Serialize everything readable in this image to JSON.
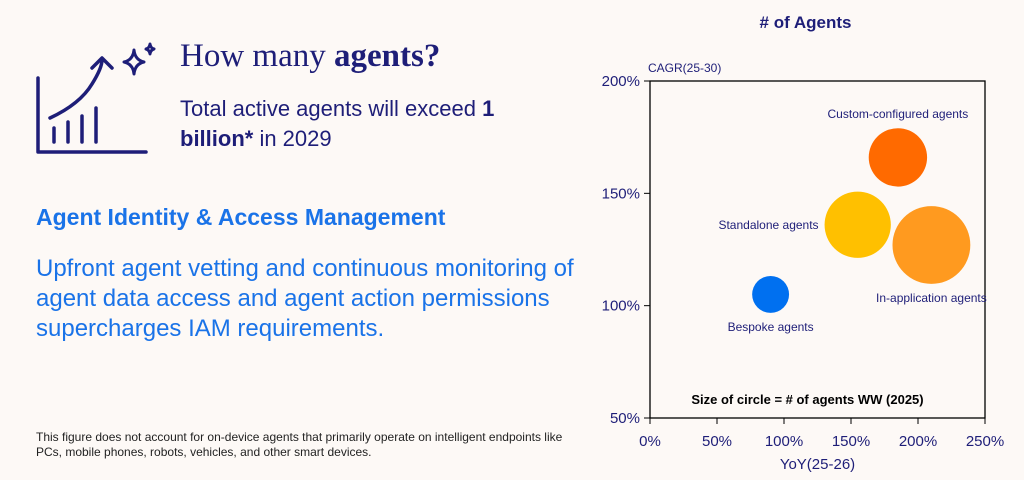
{
  "header": {
    "title_prefix": "How many ",
    "title_bold": "agents?",
    "sub_prefix": "Total active agents will exceed ",
    "sub_bold": "1 billion*",
    "sub_suffix": " in 2029"
  },
  "icons": {
    "growth": "growth-chart-icon",
    "sparkle": "sparkle-icon"
  },
  "iam": {
    "heading": "Agent Identity & Access Management",
    "body": "Upfront agent vetting and continuous monitoring of agent data access and agent action permissions supercharges IAM requirements."
  },
  "footnote": "This figure does not account for on-device agents that primarily operate on intelligent endpoints like PCs, mobile phones, robots, vehicles, and other smart devices.",
  "colors": {
    "navy": "#1e1e78",
    "blue": "#1a73e8"
  },
  "chart_data": {
    "type": "scatter",
    "title": "# of Agents",
    "xlabel": "YoY(25-26)",
    "ylabel": "CAGR(25-30)",
    "xlim": [
      0,
      250
    ],
    "ylim": [
      50,
      200
    ],
    "xticks": [
      0,
      50,
      100,
      150,
      200,
      250
    ],
    "xtick_labels": [
      "0%",
      "50%",
      "100%",
      "150%",
      "200%",
      "250%"
    ],
    "yticks": [
      50,
      100,
      150,
      200
    ],
    "ytick_labels": [
      "50%",
      "100%",
      "150%",
      "200%"
    ],
    "grid": false,
    "note": "Size of circle = # of agents WW (2025)",
    "series": [
      {
        "name": "Custom-configured agents",
        "x": 185,
        "y": 166,
        "size": 45,
        "color": "#ff6a00",
        "label_pos": "above"
      },
      {
        "name": "Standalone agents",
        "x": 155,
        "y": 136,
        "size": 58,
        "color": "#ffc000",
        "label_pos": "left"
      },
      {
        "name": "In-application agents",
        "x": 210,
        "y": 127,
        "size": 80,
        "color": "#ff9a1f",
        "label_pos": "below"
      },
      {
        "name": "Bespoke agents",
        "x": 90,
        "y": 105,
        "size": 18,
        "color": "#0070f0",
        "label_pos": "below"
      }
    ]
  }
}
